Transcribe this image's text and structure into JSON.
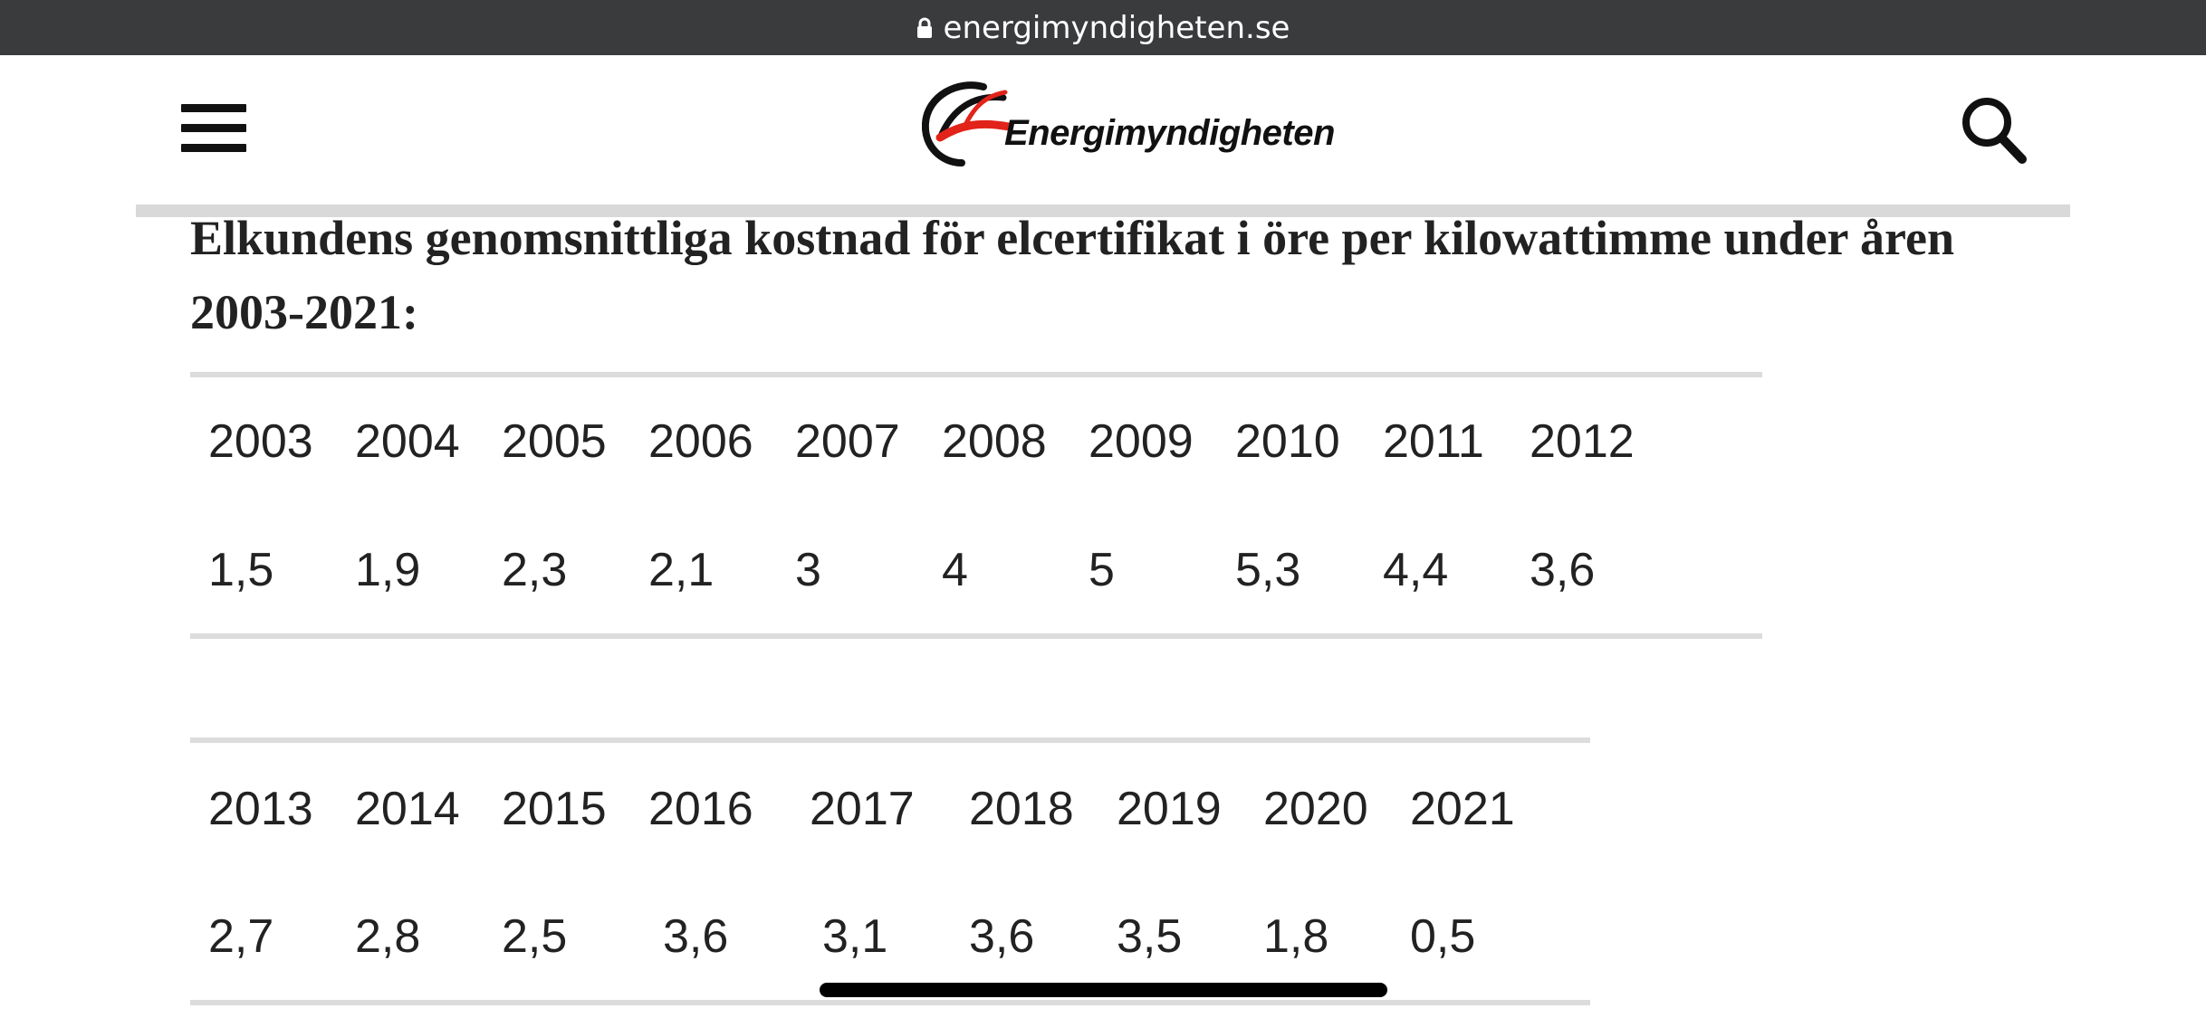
{
  "browser": {
    "url": "energimyndigheten.se"
  },
  "header": {
    "menu_icon": "hamburger-menu-icon",
    "logo_text": "Energimyndigheten",
    "search_icon": "search-icon",
    "logo_colors": {
      "red": "#e2231a",
      "dark": "#111111"
    }
  },
  "article": {
    "heading_line1": "Elkundens genomsnittliga kostnad för elcertifikat i öre per kilowattimme under åren",
    "heading_line2": "2003-2021:"
  },
  "tables": [
    {
      "years": [
        "2003",
        "2004",
        "2005",
        "2006",
        "2007",
        "2008",
        "2009",
        "2010",
        "2011",
        "2012"
      ],
      "values": [
        "1,5",
        "1,9",
        "2,3",
        "2,1",
        "3",
        "4",
        "5",
        "5,3",
        "4,4",
        "3,6"
      ]
    },
    {
      "years": [
        "2013",
        "2014",
        "2015",
        "2016",
        "2017",
        "2018",
        "2019",
        "2020",
        "2021"
      ],
      "values": [
        "2,7",
        "2,8",
        "2,5",
        "3,6",
        "3,1",
        "3,6",
        "3,5",
        "1,8",
        "0,5"
      ]
    }
  ]
}
